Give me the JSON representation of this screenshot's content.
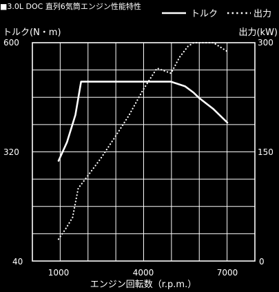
{
  "chart_data": {
    "type": "line",
    "title": "■3.0L DOC 直列6気筒エンジン性能特性",
    "xlabel": "エンジン回転数（r.p.m.）",
    "ylabel_left": "トルク(N・m)",
    "ylabel_right": "出力(kW)",
    "xlim": [
      1000,
      7000
    ],
    "ylim_left": [
      40,
      600
    ],
    "ylim_right": [
      0,
      300
    ],
    "x_ticks": [
      "1000",
      "4000",
      "7000"
    ],
    "y_left_ticks": [
      "600",
      "320",
      "40"
    ],
    "y_right_ticks": [
      "300",
      "150",
      "0"
    ],
    "grid": true,
    "legend_position": "top-right",
    "series": [
      {
        "name": "トルク",
        "axis": "left",
        "style": "solid",
        "x": [
          1000,
          1300,
          1600,
          1800,
          2000,
          3000,
          4000,
          5000,
          5500,
          5800,
          6000,
          6500,
          7000
        ],
        "y": [
          297,
          345,
          415,
          500,
          500,
          500,
          500,
          500,
          488,
          472,
          458,
          430,
          395
        ]
      },
      {
        "name": "出力",
        "axis": "right",
        "style": "dotted",
        "x": [
          1000,
          1250,
          1500,
          1700,
          2000,
          2500,
          3000,
          3500,
          4000,
          4500,
          5000,
          5300,
          5600,
          5800,
          6000,
          6500,
          7000
        ],
        "y": [
          30,
          44,
          60,
          100,
          115,
          141,
          170,
          200,
          235,
          265,
          258,
          280,
          295,
          300,
          300,
          300,
          288
        ]
      }
    ]
  }
}
